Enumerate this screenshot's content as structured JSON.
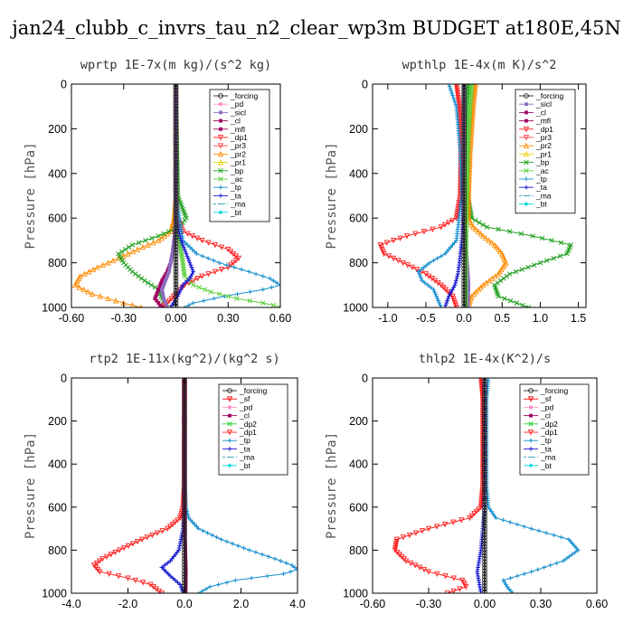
{
  "title": "jan24_clubb_c_invrs_tau_n2_clear_wp3m  BUDGET at180E,45N",
  "colors": {
    "forcing": "#222222",
    "sf": "#ff0000",
    "pd": "#ff8fc8",
    "sicl": "#8c6cc0",
    "cl": "#a00060",
    "mfl": "#a00060",
    "dp1": "#ff2020",
    "dp2": "#30d030",
    "pr3": "#ff4040",
    "pr2": "#ff8c00",
    "pr1": "#e8d000",
    "bp": "#20a020",
    "ac": "#60d040",
    "tp": "#1890d0",
    "ta": "#1818d0",
    "ma": "#30a0c0",
    "bt": "#00d8d8"
  },
  "chart_data": [
    {
      "type": "line",
      "title": "wprtp   1E-7x(m kg)/(s^2 kg)",
      "ylabel": "Pressure [hPa]",
      "xlim": [
        -0.6,
        0.6
      ],
      "ylim": [
        1000,
        0
      ],
      "y_inverted": true,
      "xticks": [
        "-0.60",
        "-0.30",
        "0.00",
        "0.30",
        "0.60"
      ],
      "xtick_values": [
        -0.6,
        -0.3,
        0,
        0.3,
        0.6
      ],
      "yticks": [
        "0",
        "200",
        "400",
        "600",
        "800",
        "1000"
      ],
      "ytick_values": [
        0,
        200,
        400,
        600,
        800,
        1000
      ],
      "legend": [
        "_forcing",
        "_pd",
        "_sicl",
        "_cl",
        "_mfl",
        "_dp1",
        "_pr3",
        "_pr2",
        "_pr1",
        "_bp",
        "_ac",
        "_tp",
        "_ta",
        "_ma",
        "_bt"
      ],
      "legend_keys": [
        "forcing",
        "pd",
        "sicl",
        "cl",
        "mfl",
        "dp1",
        "pr3",
        "pr2",
        "pr1",
        "bp",
        "ac",
        "tp",
        "ta",
        "ma",
        "bt"
      ],
      "series": [
        {
          "name": "_pr2",
          "key": "pr2",
          "y": [
            0,
            500,
            600,
            660,
            700,
            740,
            780,
            820,
            860,
            900,
            940,
            980,
            1000
          ],
          "x": [
            0,
            0,
            -0.01,
            -0.03,
            -0.1,
            -0.22,
            -0.33,
            -0.45,
            -0.55,
            -0.58,
            -0.48,
            -0.3,
            -0.2
          ]
        },
        {
          "name": "_bp",
          "key": "bp",
          "y": [
            0,
            500,
            600,
            640,
            680,
            720,
            760,
            800,
            840,
            880,
            920,
            960,
            1000
          ],
          "x": [
            0,
            0.01,
            0.06,
            0.02,
            -0.1,
            -0.25,
            -0.33,
            -0.3,
            -0.25,
            -0.18,
            -0.1,
            -0.08,
            -0.05
          ]
        },
        {
          "name": "_dp1",
          "key": "dp1",
          "y": [
            0,
            500,
            600,
            660,
            700,
            740,
            780,
            820,
            860,
            900,
            940,
            980,
            1000
          ],
          "x": [
            0,
            0,
            0.01,
            0.04,
            0.15,
            0.3,
            0.36,
            0.3,
            0.15,
            0.05,
            0.0,
            -0.05,
            -0.08
          ]
        },
        {
          "name": "_tp",
          "key": "tp",
          "y": [
            0,
            500,
            600,
            700,
            760,
            800,
            840,
            870,
            900,
            920,
            950,
            980,
            1000
          ],
          "x": [
            0,
            0,
            0.02,
            0.04,
            0.12,
            0.25,
            0.42,
            0.54,
            0.6,
            0.5,
            0.28,
            0.1,
            0.05
          ]
        },
        {
          "name": "_ac",
          "key": "ac",
          "y": [
            0,
            600,
            700,
            800,
            860,
            900,
            930,
            960,
            980,
            1000
          ],
          "x": [
            0,
            0,
            0.02,
            0.04,
            0.05,
            0.1,
            0.2,
            0.35,
            0.5,
            0.62
          ]
        },
        {
          "name": "_ta",
          "key": "ta",
          "y": [
            0,
            600,
            700,
            760,
            800,
            840,
            870,
            900,
            950,
            1000
          ],
          "x": [
            0,
            0,
            0.03,
            0.06,
            0.08,
            0.1,
            0.08,
            0.04,
            0.01,
            -0.03
          ]
        },
        {
          "name": "_cl",
          "key": "cl",
          "y": [
            0,
            600,
            700,
            760,
            800,
            840,
            880,
            920,
            960,
            1000
          ],
          "x": [
            0,
            0,
            -0.01,
            -0.02,
            -0.03,
            -0.05,
            -0.08,
            -0.1,
            -0.12,
            -0.08
          ]
        },
        {
          "name": "_sicl",
          "key": "sicl",
          "y": [
            0,
            600,
            700,
            760,
            800,
            840,
            880,
            920,
            960,
            1000
          ],
          "x": [
            0,
            0,
            -0.01,
            -0.02,
            -0.03,
            -0.04,
            -0.06,
            -0.08,
            -0.07,
            -0.05
          ]
        },
        {
          "name": "_forcing",
          "key": "forcing",
          "y": [
            0,
            100,
            200,
            300,
            400,
            500,
            600,
            700,
            800,
            900,
            1000
          ],
          "x": [
            0,
            0,
            0,
            0,
            0,
            0,
            0,
            0,
            0,
            0,
            0
          ]
        }
      ]
    },
    {
      "type": "line",
      "title": "wpthlp   1E-4x(m K)/s^2",
      "ylabel": "Pressure [hPa]",
      "xlim": [
        -1.2,
        1.6
      ],
      "ylim": [
        1000,
        0
      ],
      "y_inverted": true,
      "xticks": [
        "-1.0",
        "-0.5",
        "0.0",
        "0.5",
        "1.0",
        "1.5"
      ],
      "xtick_values": [
        -1,
        -0.5,
        0,
        0.5,
        1,
        1.5
      ],
      "yticks": [
        "0",
        "200",
        "400",
        "600",
        "800",
        "1000"
      ],
      "ytick_values": [
        0,
        200,
        400,
        600,
        800,
        1000
      ],
      "legend": [
        "_forcing",
        "_sicl",
        "_cl",
        "_mfl",
        "_dp1",
        "_pr3",
        "_pr2",
        "_pr1",
        "_bp",
        "_ac",
        "_tp",
        "_ta",
        "_ma",
        "_bt"
      ],
      "legend_keys": [
        "forcing",
        "sicl",
        "cl",
        "mfl",
        "dp1",
        "pr3",
        "pr2",
        "pr1",
        "bp",
        "ac",
        "tp",
        "ta",
        "ma",
        "bt"
      ],
      "series": [
        {
          "name": "_dp1",
          "key": "dp1",
          "y": [
            0,
            100,
            300,
            500,
            600,
            640,
            680,
            720,
            760,
            800,
            850,
            900,
            950,
            1000
          ],
          "x": [
            -0.1,
            -0.06,
            -0.04,
            -0.05,
            -0.1,
            -0.3,
            -0.75,
            -1.1,
            -1.05,
            -0.8,
            -0.5,
            -0.3,
            -0.15,
            -0.1
          ]
        },
        {
          "name": "_bp",
          "key": "bp",
          "y": [
            0,
            100,
            300,
            500,
            600,
            640,
            680,
            720,
            760,
            800,
            850,
            900,
            950,
            1000
          ],
          "x": [
            0.06,
            0.05,
            0.04,
            0.05,
            0.1,
            0.3,
            0.9,
            1.4,
            1.35,
            1.0,
            0.6,
            0.4,
            0.45,
            0.85
          ]
        },
        {
          "name": "_pr2",
          "key": "pr2",
          "y": [
            0,
            100,
            300,
            500,
            600,
            640,
            680,
            720,
            760,
            800,
            850,
            900,
            950,
            1000
          ],
          "x": [
            0.15,
            0.12,
            0.08,
            0.06,
            0.06,
            0.12,
            0.25,
            0.4,
            0.5,
            0.55,
            0.45,
            0.25,
            0.1,
            0.05
          ]
        },
        {
          "name": "_tp",
          "key": "tp",
          "y": [
            0,
            100,
            300,
            500,
            700,
            760,
            800,
            840,
            880,
            920,
            960,
            1000
          ],
          "x": [
            -0.2,
            -0.1,
            -0.05,
            -0.03,
            -0.1,
            -0.25,
            -0.45,
            -0.6,
            -0.55,
            -0.4,
            -0.35,
            -0.3
          ]
        },
        {
          "name": "_ta",
          "key": "ta",
          "y": [
            0,
            300,
            600,
            700,
            800,
            850,
            900,
            950,
            1000
          ],
          "x": [
            0,
            0,
            -0.01,
            -0.03,
            -0.06,
            -0.08,
            -0.12,
            -0.2,
            -0.25
          ]
        },
        {
          "name": "_cl",
          "key": "cl",
          "y": [
            0,
            300,
            600,
            700,
            800,
            900,
            1000
          ],
          "x": [
            0,
            0,
            0.01,
            0.02,
            0.04,
            0.05,
            0.04
          ]
        },
        {
          "name": "_sicl",
          "key": "sicl",
          "y": [
            0,
            300,
            600,
            700,
            800,
            900,
            1000
          ],
          "x": [
            0,
            0,
            0.01,
            0.02,
            0.04,
            0.06,
            0.05
          ]
        },
        {
          "name": "_ac",
          "key": "ac",
          "y": [
            0,
            100,
            300,
            600,
            1000
          ],
          "x": [
            0.1,
            0.08,
            0.05,
            0.03,
            0.02
          ]
        },
        {
          "name": "_forcing",
          "key": "forcing",
          "y": [
            0,
            200,
            400,
            600,
            800,
            1000
          ],
          "x": [
            0,
            0,
            0,
            0,
            0,
            0
          ]
        }
      ]
    },
    {
      "type": "line",
      "title": "rtp2   1E-11x(kg^2)/(kg^2 s)",
      "ylabel": "Pressure [hPa]",
      "xlim": [
        -4,
        4
      ],
      "ylim": [
        1000,
        0
      ],
      "y_inverted": true,
      "xticks": [
        "-4.0",
        "-2.0",
        "0.0",
        "2.0",
        "4.0"
      ],
      "xtick_values": [
        -4,
        -2,
        0,
        2,
        4
      ],
      "yticks": [
        "0",
        "200",
        "400",
        "600",
        "800",
        "1000"
      ],
      "ytick_values": [
        0,
        200,
        400,
        600,
        800,
        1000
      ],
      "legend": [
        "_forcing",
        "_sf",
        "_pd",
        "_cl",
        "_dp2",
        "_dp1",
        "_tp",
        "_ta",
        "_ma",
        "_bt"
      ],
      "legend_keys": [
        "forcing",
        "sf",
        "pd",
        "cl",
        "dp2",
        "dp1",
        "tp",
        "ta",
        "ma",
        "bt"
      ],
      "series": [
        {
          "name": "_dp1",
          "key": "dp1",
          "y": [
            0,
            500,
            600,
            650,
            700,
            750,
            800,
            840,
            870,
            900,
            930,
            960,
            1000
          ],
          "x": [
            0,
            -0.01,
            -0.05,
            -0.15,
            -0.6,
            -1.5,
            -2.3,
            -2.9,
            -3.2,
            -3.0,
            -2.0,
            -1.2,
            -0.8
          ]
        },
        {
          "name": "_tp",
          "key": "tp",
          "y": [
            0,
            500,
            600,
            650,
            700,
            750,
            800,
            840,
            870,
            890,
            910,
            940,
            970,
            1000
          ],
          "x": [
            0,
            0.01,
            0.05,
            0.15,
            0.5,
            1.3,
            2.3,
            3.2,
            3.8,
            4.0,
            3.5,
            1.8,
            0.9,
            0.5
          ]
        },
        {
          "name": "_ta",
          "key": "ta",
          "y": [
            0,
            600,
            700,
            800,
            850,
            880,
            920,
            960,
            1000
          ],
          "x": [
            0,
            0,
            -0.05,
            -0.2,
            -0.5,
            -0.8,
            -0.5,
            -0.15,
            -0.05
          ]
        },
        {
          "name": "_cl",
          "key": "cl",
          "y": [
            0,
            700,
            800,
            900,
            1000
          ],
          "x": [
            0,
            0.01,
            0.03,
            0.05,
            0.04
          ]
        },
        {
          "name": "_forcing",
          "key": "forcing",
          "y": [
            0,
            200,
            400,
            600,
            800,
            1000
          ],
          "x": [
            0,
            0,
            0,
            0,
            0,
            0
          ]
        }
      ]
    },
    {
      "type": "line",
      "title": "thlp2   1E-4x(K^2)/s",
      "ylabel": "Pressure [hPa]",
      "xlim": [
        -0.6,
        0.6
      ],
      "ylim": [
        1000,
        0
      ],
      "y_inverted": true,
      "xticks": [
        "-0.60",
        "-0.30",
        "0.00",
        "0.30",
        "0.60"
      ],
      "xtick_values": [
        -0.6,
        -0.3,
        0,
        0.3,
        0.6
      ],
      "yticks": [
        "0",
        "200",
        "400",
        "600",
        "800",
        "1000"
      ],
      "ytick_values": [
        0,
        200,
        400,
        600,
        800,
        1000
      ],
      "legend": [
        "_forcing",
        "_sf",
        "_pd",
        "_cl",
        "_dp2",
        "_dp1",
        "_tp",
        "_ta",
        "_ma",
        "_bt"
      ],
      "legend_keys": [
        "forcing",
        "sf",
        "pd",
        "cl",
        "dp2",
        "dp1",
        "tp",
        "ta",
        "ma",
        "bt"
      ],
      "series": [
        {
          "name": "_dp1",
          "key": "dp1",
          "y": [
            0,
            100,
            300,
            500,
            600,
            650,
            700,
            750,
            800,
            850,
            900,
            940,
            970,
            1000
          ],
          "x": [
            -0.02,
            -0.01,
            -0.01,
            -0.01,
            -0.02,
            -0.08,
            -0.3,
            -0.47,
            -0.48,
            -0.42,
            -0.3,
            -0.12,
            -0.1,
            -0.2
          ]
        },
        {
          "name": "_tp",
          "key": "tp",
          "y": [
            0,
            100,
            300,
            500,
            600,
            650,
            700,
            750,
            800,
            850,
            900,
            940,
            970,
            1000
          ],
          "x": [
            0.02,
            0.01,
            0.01,
            0.01,
            0.02,
            0.06,
            0.25,
            0.45,
            0.5,
            0.42,
            0.25,
            0.1,
            0.12,
            0.15
          ]
        },
        {
          "name": "_ta",
          "key": "ta",
          "y": [
            0,
            600,
            700,
            800,
            850,
            900,
            950,
            1000
          ],
          "x": [
            0,
            0,
            -0.01,
            -0.02,
            -0.03,
            -0.04,
            -0.03,
            -0.02
          ]
        },
        {
          "name": "_forcing",
          "key": "forcing",
          "y": [
            0,
            200,
            400,
            600,
            800,
            1000
          ],
          "x": [
            0,
            0,
            0,
            0,
            0,
            0
          ]
        }
      ]
    }
  ]
}
